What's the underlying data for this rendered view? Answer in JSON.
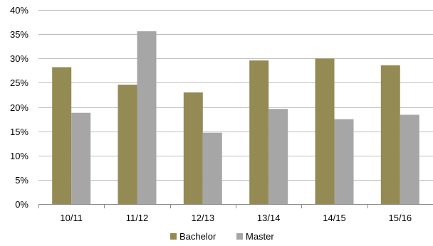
{
  "chart_data": {
    "type": "bar",
    "categories": [
      "10/11",
      "11/12",
      "12/13",
      "13/14",
      "14/15",
      "15/16"
    ],
    "series": [
      {
        "name": "Bachelor",
        "color": "#948a54",
        "values": [
          28.2,
          24.6,
          23.0,
          29.6,
          30.0,
          28.6
        ]
      },
      {
        "name": "Master",
        "color": "#a6a6a6",
        "values": [
          18.8,
          35.6,
          14.7,
          19.6,
          17.5,
          18.4
        ]
      }
    ],
    "ylim": [
      0,
      40
    ],
    "ytick_labels": [
      "0%",
      "5%",
      "10%",
      "15%",
      "20%",
      "25%",
      "30%",
      "35%",
      "40%"
    ],
    "grid": true,
    "legend_position": "bottom",
    "title": "",
    "xlabel": "",
    "ylabel": ""
  }
}
